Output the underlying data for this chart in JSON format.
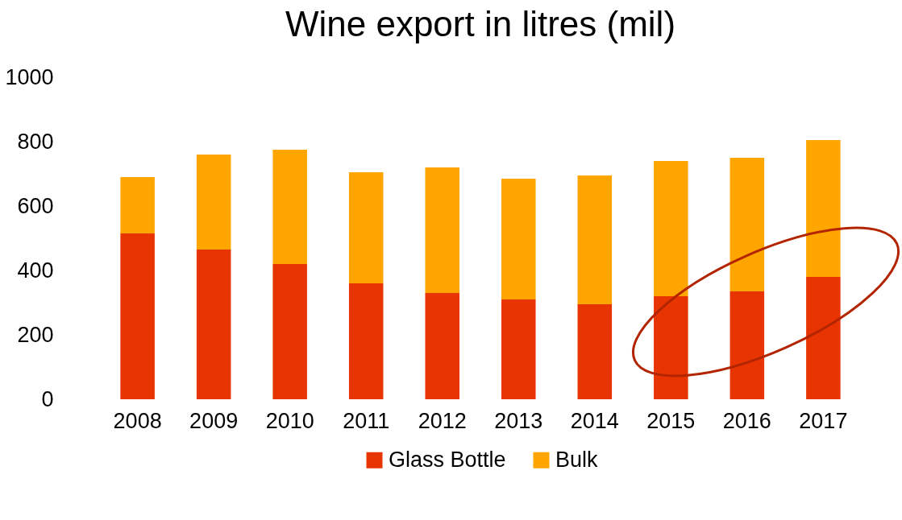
{
  "chart_data": {
    "type": "bar",
    "title": "Wine export in litres (mil)",
    "stacked": true,
    "categories": [
      "2008",
      "2009",
      "2010",
      "2011",
      "2012",
      "2013",
      "2014",
      "2015",
      "2016",
      "2017"
    ],
    "series": [
      {
        "name": "Glass Bottle",
        "color": "#e83400",
        "values": [
          515,
          465,
          420,
          360,
          330,
          310,
          295,
          320,
          335,
          380
        ]
      },
      {
        "name": "Bulk",
        "color": "#ffa500",
        "values": [
          175,
          295,
          355,
          345,
          390,
          375,
          400,
          420,
          415,
          425
        ]
      }
    ],
    "ylim": [
      0,
      1000
    ],
    "yticks": [
      0,
      200,
      400,
      600,
      800,
      1000
    ],
    "grid": false,
    "legend": "bottom"
  }
}
